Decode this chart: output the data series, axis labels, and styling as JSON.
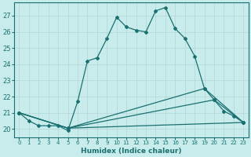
{
  "xlabel": "Humidex (Indice chaleur)",
  "ylabel": "",
  "bg_color": "#c8ecec",
  "grid_color": "#b8d8d8",
  "line_color": "#1a7070",
  "xlim": [
    -0.5,
    23.5
  ],
  "ylim": [
    19.5,
    27.8
  ],
  "yticks": [
    20,
    21,
    22,
    23,
    24,
    25,
    26,
    27
  ],
  "xticks": [
    0,
    1,
    2,
    3,
    4,
    5,
    6,
    7,
    8,
    9,
    10,
    11,
    12,
    13,
    14,
    15,
    16,
    17,
    18,
    19,
    20,
    21,
    22,
    23
  ],
  "series1": [
    [
      0,
      21.0
    ],
    [
      1,
      20.5
    ],
    [
      2,
      20.2
    ],
    [
      3,
      20.2
    ],
    [
      4,
      20.2
    ],
    [
      5,
      19.9
    ],
    [
      6,
      21.7
    ],
    [
      7,
      24.2
    ],
    [
      8,
      24.4
    ],
    [
      9,
      25.6
    ],
    [
      10,
      26.9
    ],
    [
      11,
      26.3
    ],
    [
      12,
      26.1
    ],
    [
      13,
      26.0
    ],
    [
      14,
      27.3
    ],
    [
      15,
      27.5
    ],
    [
      16,
      26.2
    ],
    [
      17,
      25.6
    ],
    [
      18,
      24.5
    ],
    [
      19,
      22.5
    ],
    [
      20,
      21.8
    ],
    [
      21,
      21.1
    ],
    [
      22,
      20.8
    ],
    [
      23,
      20.4
    ]
  ],
  "series2": [
    [
      0,
      21.0
    ],
    [
      5,
      20.05
    ],
    [
      23,
      20.4
    ]
  ],
  "series3": [
    [
      0,
      21.0
    ],
    [
      5,
      20.05
    ],
    [
      20,
      21.8
    ],
    [
      23,
      20.4
    ]
  ],
  "series4": [
    [
      0,
      21.0
    ],
    [
      5,
      20.05
    ],
    [
      19,
      22.5
    ],
    [
      23,
      20.4
    ]
  ]
}
